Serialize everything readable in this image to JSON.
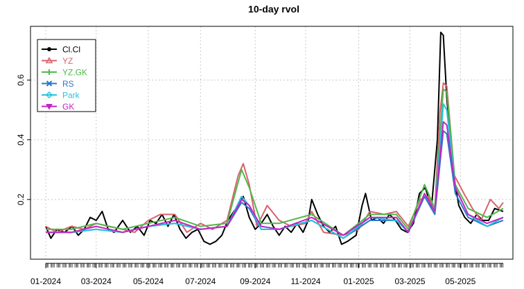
{
  "chart_data": {
    "type": "line",
    "title": "10-day rvol",
    "xlabel": "",
    "ylabel": "",
    "x_tick_labels": [
      "01-2024",
      "03-2024",
      "05-2024",
      "07-2024",
      "09-2024",
      "11-2024",
      "01-2025",
      "03-2025",
      "05-2025"
    ],
    "x_tick_dates": [
      "2024-01-02",
      "2024-03-01",
      "2024-05-01",
      "2024-07-01",
      "2024-09-03",
      "2024-11-01",
      "2025-01-02",
      "2025-03-03",
      "2025-05-01"
    ],
    "x_range": [
      "2024-01-02",
      "2025-06-20"
    ],
    "y_ticks": [
      0.2,
      0.4,
      0.6
    ],
    "y_tick_labels": [
      "0.2",
      "0.4",
      "0.6"
    ],
    "ylim": [
      0.0,
      0.78
    ],
    "grid": true,
    "legend_position": "top-left",
    "series": [
      {
        "name": "Cl.Cl",
        "color": "#000000",
        "marker": "filled-circle",
        "points": [
          [
            "2024-01-02",
            0.11
          ],
          [
            "2024-01-08",
            0.07
          ],
          [
            "2024-01-15",
            0.1
          ],
          [
            "2024-01-24",
            0.09
          ],
          [
            "2024-02-02",
            0.11
          ],
          [
            "2024-02-09",
            0.08
          ],
          [
            "2024-02-16",
            0.1
          ],
          [
            "2024-02-23",
            0.14
          ],
          [
            "2024-03-01",
            0.13
          ],
          [
            "2024-03-08",
            0.16
          ],
          [
            "2024-03-15",
            0.1
          ],
          [
            "2024-03-22",
            0.09
          ],
          [
            "2024-04-01",
            0.13
          ],
          [
            "2024-04-10",
            0.09
          ],
          [
            "2024-04-18",
            0.11
          ],
          [
            "2024-04-26",
            0.08
          ],
          [
            "2024-05-03",
            0.13
          ],
          [
            "2024-05-10",
            0.12
          ],
          [
            "2024-05-17",
            0.15
          ],
          [
            "2024-05-24",
            0.11
          ],
          [
            "2024-05-31",
            0.15
          ],
          [
            "2024-06-07",
            0.1
          ],
          [
            "2024-06-14",
            0.07
          ],
          [
            "2024-06-21",
            0.09
          ],
          [
            "2024-06-28",
            0.1
          ],
          [
            "2024-07-05",
            0.06
          ],
          [
            "2024-07-12",
            0.05
          ],
          [
            "2024-07-19",
            0.06
          ],
          [
            "2024-07-26",
            0.08
          ],
          [
            "2024-08-02",
            0.13
          ],
          [
            "2024-08-09",
            0.16
          ],
          [
            "2024-08-14",
            0.18
          ],
          [
            "2024-08-20",
            0.21
          ],
          [
            "2024-08-27",
            0.14
          ],
          [
            "2024-09-03",
            0.1
          ],
          [
            "2024-09-10",
            0.12
          ],
          [
            "2024-09-17",
            0.15
          ],
          [
            "2024-09-24",
            0.11
          ],
          [
            "2024-10-01",
            0.08
          ],
          [
            "2024-10-08",
            0.11
          ],
          [
            "2024-10-15",
            0.09
          ],
          [
            "2024-10-22",
            0.12
          ],
          [
            "2024-10-29",
            0.09
          ],
          [
            "2024-11-04",
            0.13
          ],
          [
            "2024-11-08",
            0.2
          ],
          [
            "2024-11-15",
            0.15
          ],
          [
            "2024-11-22",
            0.11
          ],
          [
            "2024-11-29",
            0.09
          ],
          [
            "2024-12-06",
            0.11
          ],
          [
            "2024-12-13",
            0.05
          ],
          [
            "2024-12-20",
            0.06
          ],
          [
            "2024-12-30",
            0.08
          ],
          [
            "2025-01-06",
            0.18
          ],
          [
            "2025-01-10",
            0.22
          ],
          [
            "2025-01-17",
            0.13
          ],
          [
            "2025-01-24",
            0.14
          ],
          [
            "2025-01-31",
            0.12
          ],
          [
            "2025-02-07",
            0.15
          ],
          [
            "2025-02-14",
            0.13
          ],
          [
            "2025-02-21",
            0.1
          ],
          [
            "2025-02-28",
            0.09
          ],
          [
            "2025-03-07",
            0.12
          ],
          [
            "2025-03-14",
            0.22
          ],
          [
            "2025-03-21",
            0.24
          ],
          [
            "2025-03-28",
            0.17
          ],
          [
            "2025-04-04",
            0.4
          ],
          [
            "2025-04-08",
            0.76
          ],
          [
            "2025-04-11",
            0.75
          ],
          [
            "2025-04-15",
            0.54
          ],
          [
            "2025-04-22",
            0.3
          ],
          [
            "2025-04-29",
            0.18
          ],
          [
            "2025-05-06",
            0.14
          ],
          [
            "2025-05-13",
            0.12
          ],
          [
            "2025-05-20",
            0.15
          ],
          [
            "2025-05-27",
            0.13
          ],
          [
            "2025-06-03",
            0.13
          ],
          [
            "2025-06-10",
            0.17
          ],
          [
            "2025-06-20",
            0.16
          ]
        ]
      },
      {
        "name": "YZ",
        "color": "#d8626c",
        "marker": "triangle",
        "points": [
          [
            "2024-01-02",
            0.11
          ],
          [
            "2024-01-15",
            0.09
          ],
          [
            "2024-02-01",
            0.11
          ],
          [
            "2024-02-16",
            0.1
          ],
          [
            "2024-03-01",
            0.12
          ],
          [
            "2024-03-15",
            0.11
          ],
          [
            "2024-04-01",
            0.1
          ],
          [
            "2024-04-15",
            0.09
          ],
          [
            "2024-05-01",
            0.13
          ],
          [
            "2024-05-15",
            0.15
          ],
          [
            "2024-06-01",
            0.15
          ],
          [
            "2024-06-15",
            0.09
          ],
          [
            "2024-07-01",
            0.12
          ],
          [
            "2024-07-15",
            0.1
          ],
          [
            "2024-08-01",
            0.13
          ],
          [
            "2024-08-14",
            0.28
          ],
          [
            "2024-08-20",
            0.32
          ],
          [
            "2024-08-27",
            0.25
          ],
          [
            "2024-09-05",
            0.11
          ],
          [
            "2024-09-17",
            0.18
          ],
          [
            "2024-10-01",
            0.13
          ],
          [
            "2024-10-15",
            0.11
          ],
          [
            "2024-11-01",
            0.12
          ],
          [
            "2024-11-08",
            0.16
          ],
          [
            "2024-11-22",
            0.09
          ],
          [
            "2024-12-15",
            0.08
          ],
          [
            "2025-01-02",
            0.1
          ],
          [
            "2025-01-15",
            0.16
          ],
          [
            "2025-02-01",
            0.15
          ],
          [
            "2025-02-15",
            0.16
          ],
          [
            "2025-03-01",
            0.11
          ],
          [
            "2025-03-15",
            0.2
          ],
          [
            "2025-03-24",
            0.21
          ],
          [
            "2025-04-01",
            0.17
          ],
          [
            "2025-04-07",
            0.49
          ],
          [
            "2025-04-11",
            0.59
          ],
          [
            "2025-04-15",
            0.58
          ],
          [
            "2025-04-24",
            0.28
          ],
          [
            "2025-05-05",
            0.22
          ],
          [
            "2025-05-15",
            0.17
          ],
          [
            "2025-05-25",
            0.13
          ],
          [
            "2025-06-05",
            0.2
          ],
          [
            "2025-06-15",
            0.17
          ],
          [
            "2025-06-20",
            0.19
          ]
        ]
      },
      {
        "name": "YZ.GK",
        "color": "#4fb84a",
        "marker": "plus",
        "points": [
          [
            "2024-01-02",
            0.1
          ],
          [
            "2024-02-01",
            0.1
          ],
          [
            "2024-03-01",
            0.12
          ],
          [
            "2024-04-01",
            0.1
          ],
          [
            "2024-05-01",
            0.12
          ],
          [
            "2024-06-01",
            0.14
          ],
          [
            "2024-07-01",
            0.11
          ],
          [
            "2024-08-01",
            0.12
          ],
          [
            "2024-08-18",
            0.3
          ],
          [
            "2024-08-27",
            0.24
          ],
          [
            "2024-09-10",
            0.12
          ],
          [
            "2024-10-01",
            0.12
          ],
          [
            "2024-11-08",
            0.15
          ],
          [
            "2024-12-15",
            0.08
          ],
          [
            "2025-01-15",
            0.15
          ],
          [
            "2025-02-15",
            0.15
          ],
          [
            "2025-03-01",
            0.1
          ],
          [
            "2025-03-20",
            0.25
          ],
          [
            "2025-04-01",
            0.17
          ],
          [
            "2025-04-11",
            0.57
          ],
          [
            "2025-04-15",
            0.56
          ],
          [
            "2025-04-25",
            0.25
          ],
          [
            "2025-05-10",
            0.17
          ],
          [
            "2025-06-01",
            0.14
          ],
          [
            "2025-06-20",
            0.17
          ]
        ]
      },
      {
        "name": "RS",
        "color": "#2a78c8",
        "marker": "cross",
        "points": [
          [
            "2024-01-02",
            0.09
          ],
          [
            "2024-02-01",
            0.09
          ],
          [
            "2024-03-01",
            0.1
          ],
          [
            "2024-04-01",
            0.09
          ],
          [
            "2024-05-01",
            0.11
          ],
          [
            "2024-06-01",
            0.12
          ],
          [
            "2024-07-01",
            0.1
          ],
          [
            "2024-08-01",
            0.11
          ],
          [
            "2024-08-18",
            0.19
          ],
          [
            "2024-08-27",
            0.17
          ],
          [
            "2024-09-10",
            0.1
          ],
          [
            "2024-10-01",
            0.1
          ],
          [
            "2024-11-08",
            0.13
          ],
          [
            "2024-12-15",
            0.07
          ],
          [
            "2025-01-15",
            0.13
          ],
          [
            "2025-02-15",
            0.13
          ],
          [
            "2025-03-01",
            0.09
          ],
          [
            "2025-03-20",
            0.21
          ],
          [
            "2025-04-01",
            0.15
          ],
          [
            "2025-04-11",
            0.43
          ],
          [
            "2025-04-15",
            0.42
          ],
          [
            "2025-04-25",
            0.22
          ],
          [
            "2025-05-10",
            0.14
          ],
          [
            "2025-06-01",
            0.11
          ],
          [
            "2025-06-20",
            0.13
          ]
        ]
      },
      {
        "name": "Park",
        "color": "#25c3dc",
        "marker": "diamond",
        "points": [
          [
            "2024-01-02",
            0.09
          ],
          [
            "2024-02-01",
            0.09
          ],
          [
            "2024-03-01",
            0.1
          ],
          [
            "2024-04-01",
            0.09
          ],
          [
            "2024-05-01",
            0.11
          ],
          [
            "2024-06-01",
            0.12
          ],
          [
            "2024-07-01",
            0.1
          ],
          [
            "2024-08-01",
            0.11
          ],
          [
            "2024-08-18",
            0.21
          ],
          [
            "2024-08-27",
            0.18
          ],
          [
            "2024-09-10",
            0.1
          ],
          [
            "2024-10-01",
            0.1
          ],
          [
            "2024-11-08",
            0.13
          ],
          [
            "2024-12-15",
            0.07
          ],
          [
            "2025-01-15",
            0.14
          ],
          [
            "2025-02-15",
            0.13
          ],
          [
            "2025-03-01",
            0.09
          ],
          [
            "2025-03-20",
            0.22
          ],
          [
            "2025-04-01",
            0.16
          ],
          [
            "2025-04-11",
            0.52
          ],
          [
            "2025-04-15",
            0.5
          ],
          [
            "2025-04-25",
            0.24
          ],
          [
            "2025-05-10",
            0.15
          ],
          [
            "2025-06-01",
            0.11
          ],
          [
            "2025-06-20",
            0.14
          ]
        ]
      },
      {
        "name": "GK",
        "color": "#c622c6",
        "marker": "triangle-down",
        "points": [
          [
            "2024-01-02",
            0.09
          ],
          [
            "2024-02-01",
            0.09
          ],
          [
            "2024-03-01",
            0.11
          ],
          [
            "2024-04-01",
            0.09
          ],
          [
            "2024-05-01",
            0.11
          ],
          [
            "2024-06-01",
            0.13
          ],
          [
            "2024-07-01",
            0.1
          ],
          [
            "2024-08-01",
            0.11
          ],
          [
            "2024-08-18",
            0.2
          ],
          [
            "2024-08-27",
            0.18
          ],
          [
            "2024-09-10",
            0.11
          ],
          [
            "2024-10-01",
            0.1
          ],
          [
            "2024-11-08",
            0.14
          ],
          [
            "2024-12-15",
            0.08
          ],
          [
            "2025-01-15",
            0.14
          ],
          [
            "2025-02-15",
            0.14
          ],
          [
            "2025-03-01",
            0.09
          ],
          [
            "2025-03-20",
            0.22
          ],
          [
            "2025-04-01",
            0.16
          ],
          [
            "2025-04-11",
            0.46
          ],
          [
            "2025-04-15",
            0.45
          ],
          [
            "2025-04-25",
            0.24
          ],
          [
            "2025-05-10",
            0.15
          ],
          [
            "2025-06-01",
            0.12
          ],
          [
            "2025-06-20",
            0.14
          ]
        ]
      }
    ]
  }
}
